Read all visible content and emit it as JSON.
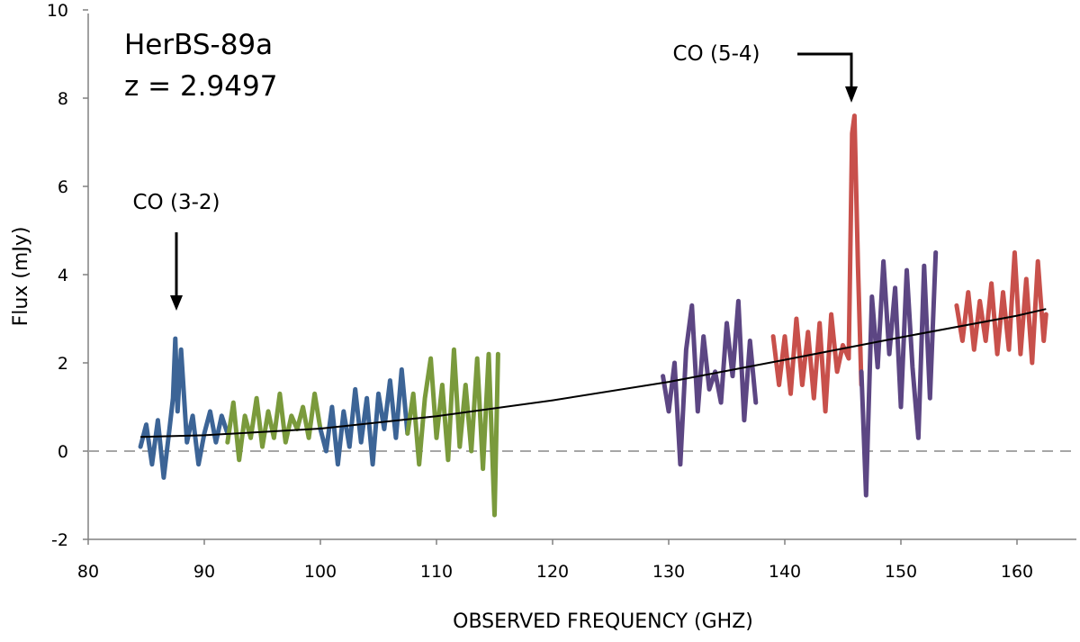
{
  "chart_data": {
    "type": "line",
    "xlabel": "OBSERVED FREQUENCY (GHZ)",
    "ylabel": "Flux (mJy)",
    "xlim": [
      80,
      165
    ],
    "ylim": [
      -2,
      10
    ],
    "x_ticks": [
      "80",
      "90",
      "100",
      "110",
      "120",
      "130",
      "140",
      "150",
      "160"
    ],
    "y_ticks": [
      "-2",
      "0",
      "2",
      "4",
      "6",
      "8",
      "10"
    ],
    "grid": false,
    "zero_line": {
      "y": 0,
      "style": "dashed",
      "color": "#A6A6A6"
    },
    "annotations": {
      "source_name": "HerBS-89a",
      "redshift": "z = 2.9497",
      "lines": [
        {
          "label": "CO (3-2)",
          "freq": 87.5
        },
        {
          "label": "CO (5-4)",
          "freq": 146.0
        }
      ]
    },
    "continuum_fit": {
      "color": "#000000",
      "x": [
        84.5,
        90,
        100,
        110,
        120,
        130,
        140,
        150,
        160,
        162.5
      ],
      "y": [
        0.32,
        0.36,
        0.51,
        0.79,
        1.15,
        1.57,
        2.07,
        2.58,
        3.07,
        3.22
      ]
    },
    "series": [
      {
        "color": "#3C6496",
        "x": [
          84.5,
          85,
          85.5,
          86,
          86.5,
          87,
          87.3,
          87.5,
          87.7,
          88,
          88.5,
          89,
          89.5,
          90,
          90.5,
          91,
          91.5,
          92
        ],
        "y": [
          0.1,
          0.6,
          -0.3,
          0.7,
          -0.6,
          0.5,
          1.2,
          2.55,
          0.9,
          2.3,
          0.2,
          0.8,
          -0.3,
          0.4,
          0.9,
          0.2,
          0.8,
          0.4
        ]
      },
      {
        "color": "#7A9A3C",
        "x": [
          92,
          92.5,
          93,
          93.5,
          94,
          94.5,
          95,
          95.5,
          96,
          96.5,
          97,
          97.5,
          98,
          98.5,
          99,
          99.5,
          100
        ],
        "y": [
          0.2,
          1.1,
          -0.2,
          0.8,
          0.3,
          1.2,
          0.1,
          0.9,
          0.3,
          1.3,
          0.2,
          0.8,
          0.5,
          1.0,
          0.3,
          1.3,
          0.5
        ]
      },
      {
        "color": "#3C6496",
        "x": [
          100,
          100.5,
          101,
          101.5,
          102,
          102.5,
          103,
          103.5,
          104,
          104.5,
          105,
          105.5,
          106,
          106.5,
          107,
          107.5
        ],
        "y": [
          0.5,
          0.0,
          1.0,
          -0.3,
          0.9,
          0.1,
          1.4,
          0.2,
          1.2,
          -0.3,
          1.3,
          0.5,
          1.6,
          0.3,
          1.85,
          0.4
        ]
      },
      {
        "color": "#7A9A3C",
        "x": [
          107.5,
          108,
          108.5,
          109,
          109.5,
          110,
          110.5,
          111,
          111.5,
          112,
          112.5,
          113,
          113.5,
          114,
          114.5,
          115,
          115.3
        ],
        "y": [
          0.4,
          1.3,
          -0.3,
          1.2,
          2.1,
          0.3,
          1.5,
          -0.2,
          2.3,
          0.1,
          1.5,
          0.0,
          2.1,
          -0.4,
          2.2,
          -1.45,
          2.2
        ]
      },
      {
        "color": "#5C4683",
        "x": [
          129.5,
          130,
          130.5,
          131,
          131.5,
          132,
          132.5,
          133,
          133.5,
          134,
          134.5,
          135,
          135.5,
          136,
          136.5,
          137,
          137.5
        ],
        "y": [
          1.7,
          0.9,
          2.0,
          -0.3,
          2.3,
          3.3,
          0.9,
          2.6,
          1.4,
          1.8,
          1.1,
          2.9,
          1.7,
          3.4,
          0.7,
          2.5,
          1.1
        ]
      },
      {
        "color": "#C8504B",
        "x": [
          139,
          139.5,
          140,
          140.5,
          141,
          141.5,
          142,
          142.5,
          143,
          143.5,
          144,
          144.5,
          145,
          145.5,
          145.8,
          146,
          146.3,
          146.6
        ],
        "y": [
          2.6,
          1.5,
          2.6,
          1.3,
          3.0,
          1.5,
          2.7,
          1.2,
          2.9,
          0.9,
          3.1,
          1.8,
          2.4,
          2.1,
          7.2,
          7.6,
          4.2,
          1.5
        ]
      },
      {
        "color": "#5C4683",
        "x": [
          146.6,
          147,
          147.5,
          148,
          148.5,
          149,
          149.5,
          150,
          150.5,
          151,
          151.5,
          152,
          152.5,
          153
        ],
        "y": [
          1.8,
          -1.0,
          3.5,
          1.9,
          4.3,
          2.2,
          3.7,
          1.0,
          4.1,
          1.9,
          0.3,
          4.2,
          1.2,
          4.5
        ]
      },
      {
        "color": "#C8504B",
        "x": [
          154.8,
          155.3,
          155.8,
          156.3,
          156.8,
          157.3,
          157.8,
          158.3,
          158.8,
          159.3,
          159.8,
          160.3,
          160.8,
          161.3,
          161.8,
          162.3,
          162.5
        ],
        "y": [
          3.3,
          2.5,
          3.6,
          2.3,
          3.4,
          2.5,
          3.8,
          2.2,
          3.6,
          2.3,
          4.5,
          2.2,
          3.9,
          2.0,
          4.3,
          2.5,
          3.1
        ]
      }
    ]
  }
}
